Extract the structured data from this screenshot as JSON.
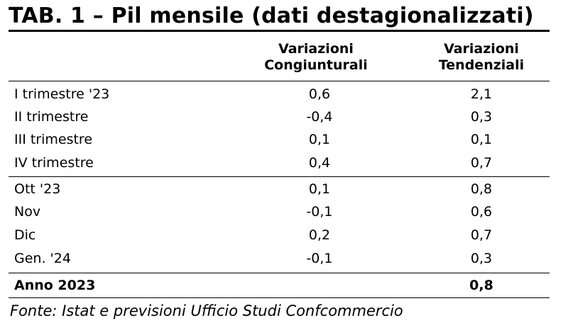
{
  "title": "TAB. 1 – Pil mensile (dati destagionalizzati)",
  "columns": [
    {
      "line1": "Variazioni",
      "line2": "Congiunturali"
    },
    {
      "line1": "Variazioni",
      "line2": "Tendenziali"
    }
  ],
  "rows": [
    {
      "label": "I trimestre '23",
      "v1": "0,6",
      "v2": "2,1"
    },
    {
      "label": "II trimestre",
      "v1": "-0,4",
      "v2": "0,3"
    },
    {
      "label": "III trimestre",
      "v1": "0,1",
      "v2": "0,1"
    },
    {
      "label": "IV trimestre",
      "v1": "0,4",
      "v2": "0,7"
    },
    {
      "label": "Ott '23",
      "v1": "0,1",
      "v2": "0,8"
    },
    {
      "label": "Nov",
      "v1": "-0,1",
      "v2": "0,6"
    },
    {
      "label": "Dic",
      "v1": "0,2",
      "v2": "0,7"
    },
    {
      "label": "Gen. '24",
      "v1": "-0,1",
      "v2": "0,3"
    }
  ],
  "total": {
    "label": "Anno 2023",
    "v1": "",
    "v2": "0,8"
  },
  "source": "Fonte: Istat e previsioni Ufficio Studi Confcommercio"
}
